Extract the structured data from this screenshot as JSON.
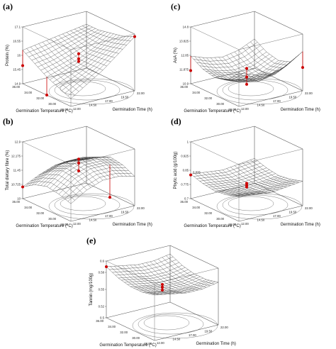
{
  "chart_data": [
    {
      "type": "surface",
      "panel_label": "(a)",
      "xlabel": "Germination Temperature (°C)",
      "ylabel_time": "Germination Time (h)",
      "zlabel": "Protein (%)",
      "temp_ticks": [
        "36.00",
        "34.00",
        "32.00",
        "30.00",
        "28.00"
      ],
      "time_ticks": [
        "12.00",
        "14.50",
        "17.00",
        "19.50",
        "22.00"
      ],
      "z_ticks": [
        "14.9",
        "15.45",
        "16",
        "16.55",
        "17.1"
      ],
      "zlim": [
        14.9,
        17.1
      ],
      "grid": [
        [
          16.2,
          16.3,
          16.4,
          16.5,
          16.6
        ],
        [
          15.9,
          16.0,
          16.2,
          16.4,
          16.6
        ],
        [
          15.6,
          15.8,
          16.0,
          16.3,
          16.7
        ],
        [
          15.4,
          15.7,
          16.0,
          16.4,
          16.8
        ],
        [
          15.2,
          15.6,
          16.0,
          16.5,
          17.0
        ]
      ],
      "points": [
        {
          "temp": 36,
          "time": 12,
          "z": 15.6
        },
        {
          "temp": 32,
          "time": 17,
          "z": 16.2
        },
        {
          "temp": 32,
          "time": 17,
          "z": 16.0
        },
        {
          "temp": 32,
          "time": 17,
          "z": 15.9
        },
        {
          "temp": 28,
          "time": 22,
          "z": 17.0
        },
        {
          "temp": 32,
          "time": 12,
          "z": 14.9
        }
      ]
    },
    {
      "type": "surface",
      "panel_label": "(c)",
      "xlabel": "Germination Temperature (°C)",
      "ylabel_time": "Germination Time (h)",
      "zlabel": "AsA (%)",
      "temp_ticks": [
        "36.00",
        "34.00",
        "32.00",
        "30.00",
        "28.00"
      ],
      "time_ticks": [
        "12.00",
        "14.50",
        "17.00",
        "19.50",
        "22.00"
      ],
      "z_ticks": [
        "10.9",
        "11.875",
        "12.85",
        "13.825",
        "14.8"
      ],
      "zlim": [
        10.9,
        14.8
      ],
      "grid": [
        [
          12.8,
          12.4,
          12.2,
          12.4,
          12.9
        ],
        [
          12.3,
          11.9,
          11.7,
          11.9,
          12.4
        ],
        [
          12.1,
          11.7,
          11.5,
          11.7,
          12.2
        ],
        [
          12.3,
          11.9,
          11.7,
          11.9,
          12.5
        ],
        [
          13.2,
          12.8,
          12.6,
          12.9,
          13.6
        ]
      ],
      "points": [
        {
          "temp": 36,
          "time": 12,
          "z": 11.8
        },
        {
          "temp": 32,
          "time": 17,
          "z": 11.6
        },
        {
          "temp": 32,
          "time": 17,
          "z": 11.1
        },
        {
          "temp": 32,
          "time": 17,
          "z": 12.2
        },
        {
          "temp": 28,
          "time": 22,
          "z": 12.5
        }
      ]
    },
    {
      "type": "surface",
      "panel_label": "(b)",
      "xlabel": "Germination Temperature (°C)",
      "ylabel_time": "Germination Time (h)",
      "zlabel": "Total dietary fibre (%)",
      "temp_ticks": [
        "36.00",
        "34.00",
        "32.00",
        "30.00",
        "28.00"
      ],
      "time_ticks": [
        "12.00",
        "14.50",
        "17.00",
        "19.50",
        "22.00"
      ],
      "z_ticks": [
        "10",
        "10.725",
        "11.45",
        "12.175",
        "12.9"
      ],
      "zlim": [
        10,
        12.9
      ],
      "grid": [
        [
          10.6,
          11.0,
          11.3,
          11.3,
          11.2
        ],
        [
          11.0,
          11.5,
          11.8,
          11.8,
          11.6
        ],
        [
          11.2,
          11.8,
          12.1,
          12.1,
          11.9
        ],
        [
          11.1,
          11.7,
          12.0,
          12.0,
          11.8
        ],
        [
          10.9,
          11.4,
          11.7,
          11.7,
          11.5
        ]
      ],
      "points": [
        {
          "temp": 32,
          "time": 17,
          "z": 12.2
        },
        {
          "temp": 32,
          "time": 17,
          "z": 12.0
        },
        {
          "temp": 32,
          "time": 17,
          "z": 11.6
        },
        {
          "temp": 30,
          "time": 20,
          "z": 10.3
        },
        {
          "temp": 36,
          "time": 12,
          "z": 10.6
        }
      ]
    },
    {
      "type": "surface",
      "panel_label": "(d)",
      "xlabel": "Germination Temperature (°C)",
      "ylabel_time": "Germination Time (h)",
      "zlabel": "Phytic acid (g/100g)",
      "temp_ticks": [
        "36.00",
        "34.00",
        "32.00",
        "30.00",
        "28.00"
      ],
      "time_ticks": [
        "12.00",
        "14.50",
        "17.00",
        "19.50",
        "22.00"
      ],
      "z_ticks": [
        "0.7",
        "0.775",
        "0.85",
        "0.925",
        "1"
      ],
      "zlim": [
        0.7,
        1
      ],
      "annotation": "0.825",
      "grid": [
        [
          0.83,
          0.82,
          0.81,
          0.82,
          0.83
        ],
        [
          0.81,
          0.8,
          0.79,
          0.8,
          0.81
        ],
        [
          0.8,
          0.79,
          0.785,
          0.79,
          0.8
        ],
        [
          0.81,
          0.8,
          0.79,
          0.8,
          0.81
        ],
        [
          0.83,
          0.82,
          0.81,
          0.82,
          0.83
        ]
      ],
      "points": [
        {
          "temp": 36,
          "time": 12,
          "z": 0.825
        },
        {
          "temp": 32,
          "time": 17,
          "z": 0.8
        },
        {
          "temp": 32,
          "time": 17,
          "z": 0.79
        },
        {
          "temp": 32,
          "time": 17,
          "z": 0.78
        }
      ]
    },
    {
      "type": "surface",
      "panel_label": "(e)",
      "xlabel": "Germination Temperature (°C)",
      "ylabel_time": "Germination Time (h)",
      "zlabel": "Tannin (mg/100g)",
      "temp_ticks": [
        "36.00",
        "34.00",
        "32.00",
        "30.00",
        "28.00"
      ],
      "time_ticks": [
        "12.00",
        "14.50",
        "17.00",
        "19.50",
        "22.00"
      ],
      "z_ticks": [
        "0.5",
        "0.52",
        "0.55",
        "0.58",
        "0.6"
      ],
      "zlim": [
        0.5,
        0.6
      ],
      "grid": [
        [
          0.59,
          0.585,
          0.58,
          0.58,
          0.585
        ],
        [
          0.58,
          0.575,
          0.57,
          0.57,
          0.575
        ],
        [
          0.575,
          0.57,
          0.565,
          0.565,
          0.57
        ],
        [
          0.575,
          0.57,
          0.565,
          0.565,
          0.57
        ],
        [
          0.58,
          0.575,
          0.57,
          0.57,
          0.575
        ]
      ],
      "points": [
        {
          "temp": 36,
          "time": 12,
          "z": 0.59
        },
        {
          "temp": 32,
          "time": 17,
          "z": 0.565
        },
        {
          "temp": 32,
          "time": 17,
          "z": 0.56
        },
        {
          "temp": 32,
          "time": 17,
          "z": 0.555
        }
      ]
    }
  ],
  "colors": {
    "mesh": "#2a2a2a",
    "box": "#555555",
    "point": "#cc0000",
    "contour": "#444444"
  }
}
